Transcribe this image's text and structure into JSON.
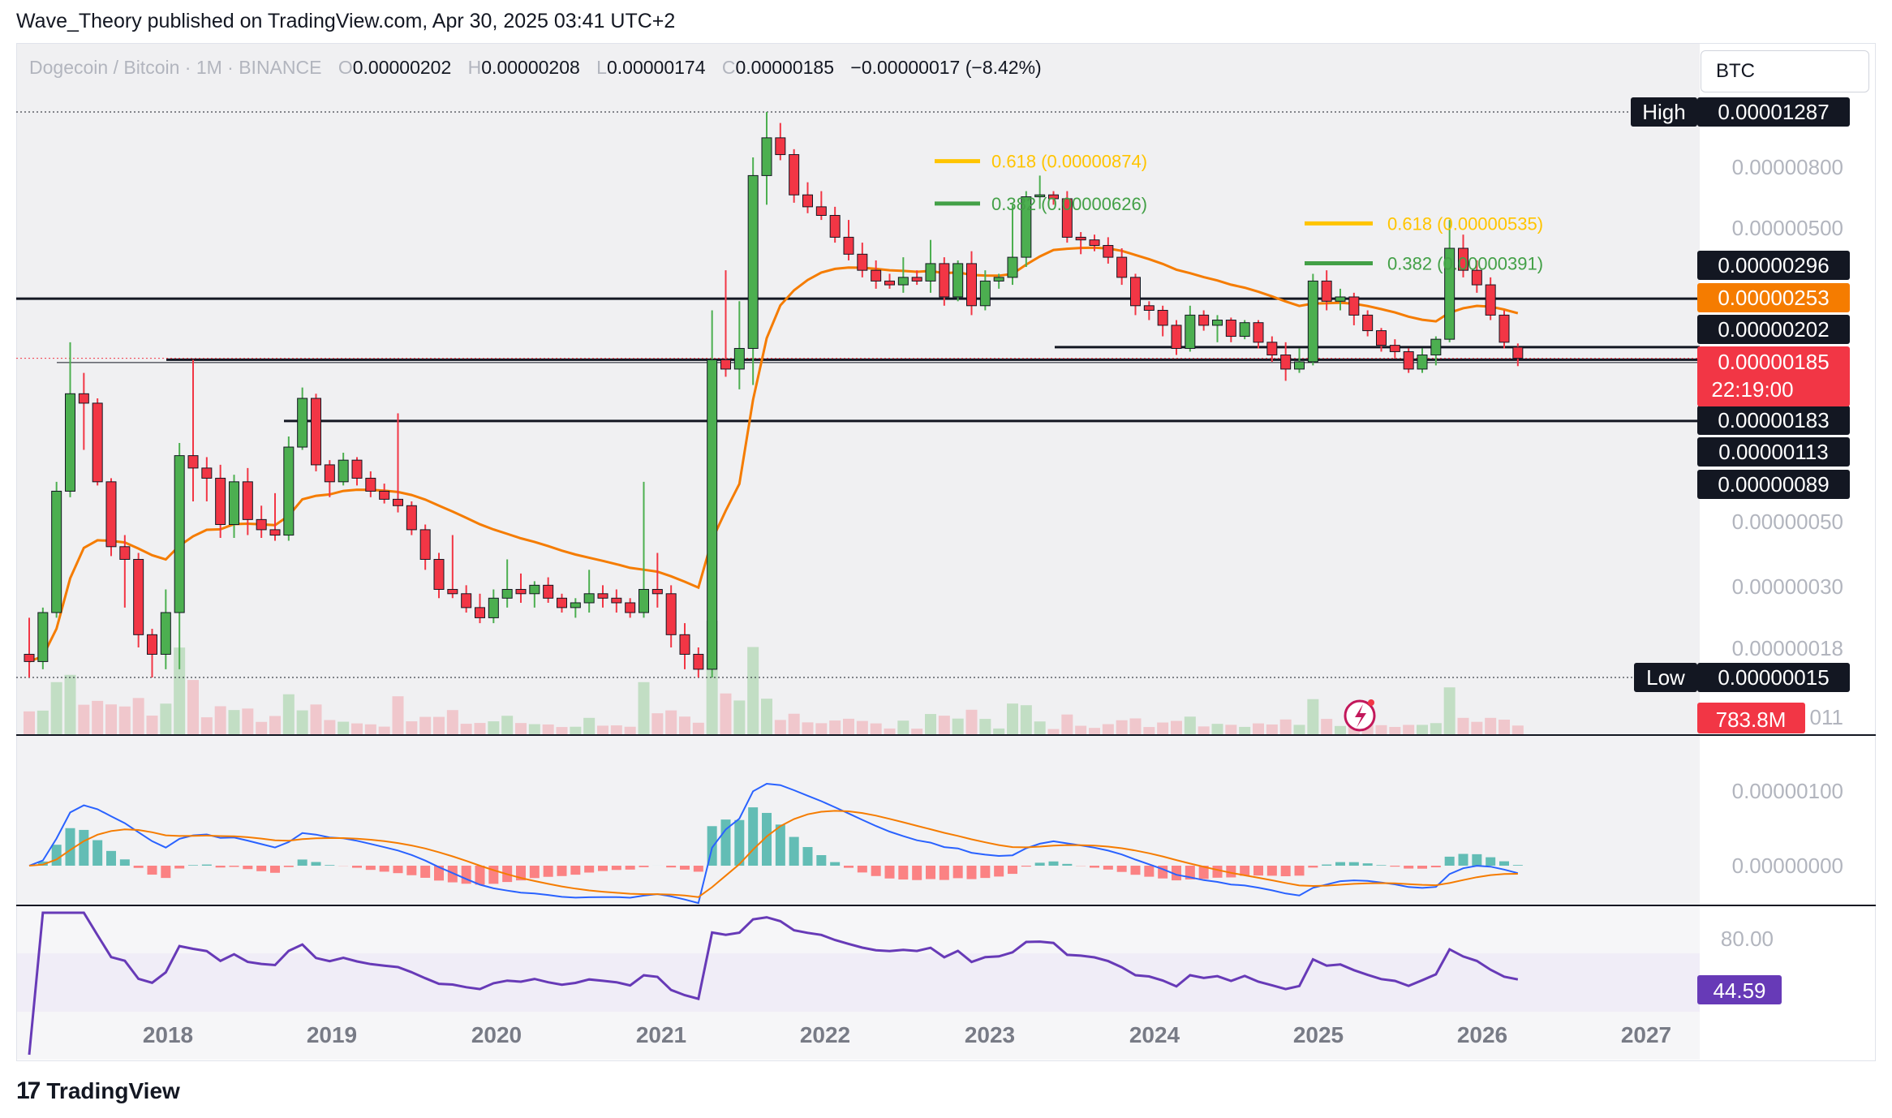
{
  "header": {
    "text": "Wave_Theory published on TradingView.com, Apr 30, 2025 03:41 UTC+2"
  },
  "legend": {
    "symbol": "Dogecoin / Bitcoin · 1M · BINANCE",
    "o_label": "O",
    "o": "0.00000202",
    "h_label": "H",
    "h": "0.00000208",
    "l_label": "L",
    "l": "0.00000174",
    "c_label": "C",
    "c": "0.00000185",
    "change": "−0.00000017 (−8.42%)"
  },
  "currency": "BTC",
  "footer": {
    "brand": "TradingView"
  },
  "colors": {
    "up": "#4caf50",
    "down": "#f23645",
    "ema": "#f57c00",
    "macd": "#2962ff",
    "signal": "#f57c00",
    "rsi": "#673ab7",
    "fib_618": "#ffc400",
    "fib_382": "#43a047"
  },
  "chart_data": {
    "type": "candlestick",
    "price_scale": "log",
    "x_axis_labels": [
      "2018",
      "2019",
      "2020",
      "2021",
      "2022",
      "2023",
      "2024",
      "2025",
      "2026",
      "2027"
    ],
    "y_axis_labels": [
      "0.00000800",
      "0.00000500",
      "0.00000050",
      "0.00000030",
      "0.00000018"
    ],
    "high_marker": {
      "label": "High",
      "value": "0.00001287"
    },
    "low_marker": {
      "label": "Low",
      "value": "0.00000015"
    },
    "horizontal_levels": [
      "0.00000296",
      "0.00000202",
      "0.00000183",
      "0.00000113",
      "0.00000089"
    ],
    "ema_value": "0.00000253",
    "last_price": "0.00000185",
    "countdown": "22:19:00",
    "volume": {
      "last": "783.8M",
      "axis_partial": "011"
    },
    "fib_levels": [
      {
        "label": "0.618 (0.00000874)",
        "value": 8.74e-06,
        "color": "#ffc400"
      },
      {
        "label": "0.382 (0.00000626)",
        "value": 6.26e-06,
        "color": "#43a047"
      },
      {
        "label": "0.618 (0.00000535)",
        "value": 5.35e-06,
        "color": "#ffc400"
      },
      {
        "label": "0.382 (0.00000391)",
        "value": 3.91e-06,
        "color": "#43a047"
      }
    ],
    "macd": {
      "axis_labels": [
        "0.00000100",
        "0.00000000"
      ]
    },
    "rsi": {
      "axis_label": "80.00",
      "value": "44.59"
    },
    "candles": [
      {
        "t": "2017-02",
        "o": 1.8e-07,
        "h": 2.4e-07,
        "l": 1.5e-07,
        "c": 1.7e-07
      },
      {
        "t": "2017-03",
        "o": 1.7e-07,
        "h": 2.6e-07,
        "l": 1.6e-07,
        "c": 2.5e-07
      },
      {
        "t": "2017-04",
        "o": 2.5e-07,
        "h": 7e-07,
        "l": 2.4e-07,
        "c": 6.5e-07
      },
      {
        "t": "2017-05",
        "o": 6.5e-07,
        "h": 2.1e-06,
        "l": 6.2e-07,
        "c": 1.4e-06
      },
      {
        "t": "2017-06",
        "o": 1.4e-06,
        "h": 1.65e-06,
        "l": 9e-07,
        "c": 1.3e-06
      },
      {
        "t": "2017-07",
        "o": 1.3e-06,
        "h": 1.35e-06,
        "l": 6.8e-07,
        "c": 7e-07
      },
      {
        "t": "2017-08",
        "o": 7e-07,
        "h": 7.2e-07,
        "l": 3.9e-07,
        "c": 4.2e-07
      },
      {
        "t": "2017-09",
        "o": 4.2e-07,
        "h": 4.6e-07,
        "l": 2.6e-07,
        "c": 3.8e-07
      },
      {
        "t": "2017-10",
        "o": 3.8e-07,
        "h": 4e-07,
        "l": 1.9e-07,
        "c": 2.1e-07
      },
      {
        "t": "2017-11",
        "o": 2.1e-07,
        "h": 2.2e-07,
        "l": 1.5e-07,
        "c": 1.8e-07
      },
      {
        "t": "2017-12",
        "o": 1.8e-07,
        "h": 3e-07,
        "l": 1.6e-07,
        "c": 2.5e-07
      },
      {
        "t": "2018-01",
        "o": 2.5e-07,
        "h": 9.5e-07,
        "l": 1.6e-07,
        "c": 8.6e-07
      },
      {
        "t": "2018-02",
        "o": 8.6e-07,
        "h": 1.83e-06,
        "l": 6e-07,
        "c": 7.8e-07
      },
      {
        "t": "2018-03",
        "o": 7.8e-07,
        "h": 8.5e-07,
        "l": 6e-07,
        "c": 7.2e-07
      },
      {
        "t": "2018-04",
        "o": 7.2e-07,
        "h": 8e-07,
        "l": 4.5e-07,
        "c": 5e-07
      },
      {
        "t": "2018-05",
        "o": 5e-07,
        "h": 7.4e-07,
        "l": 4.5e-07,
        "c": 7e-07
      },
      {
        "t": "2018-06",
        "o": 7e-07,
        "h": 7.8e-07,
        "l": 4.6e-07,
        "c": 5.2e-07
      },
      {
        "t": "2018-07",
        "o": 5.2e-07,
        "h": 5.8e-07,
        "l": 4.5e-07,
        "c": 4.8e-07
      },
      {
        "t": "2018-08",
        "o": 4.8e-07,
        "h": 6.4e-07,
        "l": 4.4e-07,
        "c": 4.6e-07
      },
      {
        "t": "2018-09",
        "o": 4.6e-07,
        "h": 1e-06,
        "l": 4.4e-07,
        "c": 9.2e-07
      },
      {
        "t": "2018-10",
        "o": 9.2e-07,
        "h": 1.47e-06,
        "l": 9e-07,
        "c": 1.35e-06
      },
      {
        "t": "2018-11",
        "o": 1.35e-06,
        "h": 1.4e-06,
        "l": 7.6e-07,
        "c": 8e-07
      },
      {
        "t": "2018-12",
        "o": 8e-07,
        "h": 8.3e-07,
        "l": 6.2e-07,
        "c": 7e-07
      },
      {
        "t": "2019-01",
        "o": 7e-07,
        "h": 8.8e-07,
        "l": 6.8e-07,
        "c": 8.3e-07
      },
      {
        "t": "2019-02",
        "o": 8.3e-07,
        "h": 8.5e-07,
        "l": 6.8e-07,
        "c": 7.2e-07
      },
      {
        "t": "2019-03",
        "o": 7.2e-07,
        "h": 7.6e-07,
        "l": 6.2e-07,
        "c": 6.5e-07
      },
      {
        "t": "2019-04",
        "o": 6.5e-07,
        "h": 6.9e-07,
        "l": 5.9e-07,
        "c": 6.1e-07
      },
      {
        "t": "2019-05",
        "o": 6.1e-07,
        "h": 1.2e-06,
        "l": 5.5e-07,
        "c": 5.8e-07
      },
      {
        "t": "2019-06",
        "o": 5.8e-07,
        "h": 6e-07,
        "l": 4.6e-07,
        "c": 4.8e-07
      },
      {
        "t": "2019-07",
        "o": 4.8e-07,
        "h": 5e-07,
        "l": 3.5e-07,
        "c": 3.8e-07
      },
      {
        "t": "2019-08",
        "o": 3.8e-07,
        "h": 4e-07,
        "l": 2.8e-07,
        "c": 3e-07
      },
      {
        "t": "2019-09",
        "o": 3e-07,
        "h": 4.6e-07,
        "l": 2.8e-07,
        "c": 2.9e-07
      },
      {
        "t": "2019-10",
        "o": 2.9e-07,
        "h": 3.1e-07,
        "l": 2.5e-07,
        "c": 2.6e-07
      },
      {
        "t": "2019-11",
        "o": 2.6e-07,
        "h": 2.9e-07,
        "l": 2.3e-07,
        "c": 2.4e-07
      },
      {
        "t": "2019-12",
        "o": 2.4e-07,
        "h": 3e-07,
        "l": 2.3e-07,
        "c": 2.8e-07
      },
      {
        "t": "2020-01",
        "o": 2.8e-07,
        "h": 3.8e-07,
        "l": 2.6e-07,
        "c": 3e-07
      },
      {
        "t": "2020-02",
        "o": 3e-07,
        "h": 3.4e-07,
        "l": 2.7e-07,
        "c": 2.9e-07
      },
      {
        "t": "2020-03",
        "o": 2.9e-07,
        "h": 3.2e-07,
        "l": 2.6e-07,
        "c": 3.1e-07
      },
      {
        "t": "2020-04",
        "o": 3.1e-07,
        "h": 3.3e-07,
        "l": 2.7e-07,
        "c": 2.8e-07
      },
      {
        "t": "2020-05",
        "o": 2.8e-07,
        "h": 2.9e-07,
        "l": 2.5e-07,
        "c": 2.6e-07
      },
      {
        "t": "2020-06",
        "o": 2.6e-07,
        "h": 2.8e-07,
        "l": 2.4e-07,
        "c": 2.7e-07
      },
      {
        "t": "2020-07",
        "o": 2.7e-07,
        "h": 3.5e-07,
        "l": 2.5e-07,
        "c": 2.9e-07
      },
      {
        "t": "2020-08",
        "o": 2.9e-07,
        "h": 3.1e-07,
        "l": 2.6e-07,
        "c": 2.8e-07
      },
      {
        "t": "2020-09",
        "o": 2.8e-07,
        "h": 3e-07,
        "l": 2.5e-07,
        "c": 2.7e-07
      },
      {
        "t": "2020-10",
        "o": 2.7e-07,
        "h": 2.8e-07,
        "l": 2.4e-07,
        "c": 2.5e-07
      },
      {
        "t": "2020-11",
        "o": 2.5e-07,
        "h": 7e-07,
        "l": 2.4e-07,
        "c": 3e-07
      },
      {
        "t": "2020-12",
        "o": 3e-07,
        "h": 4e-07,
        "l": 2.6e-07,
        "c": 2.9e-07
      },
      {
        "t": "2021-01",
        "o": 2.9e-07,
        "h": 3.1e-07,
        "l": 1.9e-07,
        "c": 2.1e-07
      },
      {
        "t": "2021-02",
        "o": 2.1e-07,
        "h": 2.3e-07,
        "l": 1.6e-07,
        "c": 1.8e-07
      },
      {
        "t": "2021-03",
        "o": 1.8e-07,
        "h": 1.9e-07,
        "l": 1.5e-07,
        "c": 1.6e-07
      },
      {
        "t": "2021-04",
        "o": 1.6e-07,
        "h": 2.7e-06,
        "l": 1.5e-07,
        "c": 1.83e-06
      },
      {
        "t": "2021-05",
        "o": 1.83e-06,
        "h": 3.7e-06,
        "l": 1.6e-06,
        "c": 1.7e-06
      },
      {
        "t": "2021-06",
        "o": 1.7e-06,
        "h": 2.9e-06,
        "l": 1.45e-06,
        "c": 2e-06
      },
      {
        "t": "2021-07",
        "o": 2e-06,
        "h": 9e-06,
        "l": 1.5e-06,
        "c": 7.8e-06
      },
      {
        "t": "2021-08",
        "o": 7.8e-06,
        "h": 1.287e-05,
        "l": 6.2e-06,
        "c": 1.05e-05
      },
      {
        "t": "2021-09",
        "o": 1.05e-05,
        "h": 1.18e-05,
        "l": 8.8e-06,
        "c": 9.2e-06
      },
      {
        "t": "2021-10",
        "o": 9.2e-06,
        "h": 9.6e-06,
        "l": 6.3e-06,
        "c": 6.7e-06
      },
      {
        "t": "2021-11",
        "o": 6.7e-06,
        "h": 7.4e-06,
        "l": 5.8e-06,
        "c": 6.1e-06
      },
      {
        "t": "2021-12",
        "o": 6.1e-06,
        "h": 6.9e-06,
        "l": 5.5e-06,
        "c": 5.7e-06
      },
      {
        "t": "2022-01",
        "o": 5.7e-06,
        "h": 6.1e-06,
        "l": 4.6e-06,
        "c": 4.8e-06
      },
      {
        "t": "2022-02",
        "o": 4.8e-06,
        "h": 5.5e-06,
        "l": 4e-06,
        "c": 4.2e-06
      },
      {
        "t": "2022-03",
        "o": 4.2e-06,
        "h": 4.6e-06,
        "l": 3.5e-06,
        "c": 3.7e-06
      },
      {
        "t": "2022-04",
        "o": 3.7e-06,
        "h": 4e-06,
        "l": 3.2e-06,
        "c": 3.4e-06
      },
      {
        "t": "2022-05",
        "o": 3.4e-06,
        "h": 3.6e-06,
        "l": 3.2e-06,
        "c": 3.3e-06
      },
      {
        "t": "2022-06",
        "o": 3.3e-06,
        "h": 4.1e-06,
        "l": 3.1e-06,
        "c": 3.5e-06
      },
      {
        "t": "2022-07",
        "o": 3.5e-06,
        "h": 3.7e-06,
        "l": 3.3e-06,
        "c": 3.4e-06
      },
      {
        "t": "2022-08",
        "o": 3.4e-06,
        "h": 4.7e-06,
        "l": 3.1e-06,
        "c": 3.9e-06
      },
      {
        "t": "2022-09",
        "o": 3.9e-06,
        "h": 4.1e-06,
        "l": 2.8e-06,
        "c": 3e-06
      },
      {
        "t": "2022-10",
        "o": 3e-06,
        "h": 4e-06,
        "l": 2.9e-06,
        "c": 3.9e-06
      },
      {
        "t": "2022-11",
        "o": 3.9e-06,
        "h": 4.3e-06,
        "l": 2.6e-06,
        "c": 2.8e-06
      },
      {
        "t": "2022-12",
        "o": 2.8e-06,
        "h": 3.7e-06,
        "l": 2.7e-06,
        "c": 3.4e-06
      },
      {
        "t": "2023-01",
        "o": 3.4e-06,
        "h": 3.6e-06,
        "l": 3.2e-06,
        "c": 3.5e-06
      },
      {
        "t": "2023-02",
        "o": 3.5e-06,
        "h": 6.2e-06,
        "l": 3.3e-06,
        "c": 4.1e-06
      },
      {
        "t": "2023-03",
        "o": 4.1e-06,
        "h": 6.9e-06,
        "l": 3.8e-06,
        "c": 6.6e-06
      },
      {
        "t": "2023-04",
        "o": 6.6e-06,
        "h": 7.8e-06,
        "l": 6e-06,
        "c": 6.7e-06
      },
      {
        "t": "2023-05",
        "o": 6.7e-06,
        "h": 6.9e-06,
        "l": 6.2e-06,
        "c": 6.5e-06
      },
      {
        "t": "2023-06",
        "o": 6.5e-06,
        "h": 6.9e-06,
        "l": 4.6e-06,
        "c": 4.8e-06
      },
      {
        "t": "2023-07",
        "o": 4.8e-06,
        "h": 5e-06,
        "l": 4.2e-06,
        "c": 4.7e-06
      },
      {
        "t": "2023-08",
        "o": 4.7e-06,
        "h": 4.9e-06,
        "l": 4.3e-06,
        "c": 4.5e-06
      },
      {
        "t": "2023-09",
        "o": 4.5e-06,
        "h": 4.8e-06,
        "l": 3.9e-06,
        "c": 4.1e-06
      },
      {
        "t": "2023-10",
        "o": 4.1e-06,
        "h": 4.4e-06,
        "l": 3.3e-06,
        "c": 3.5e-06
      },
      {
        "t": "2023-11",
        "o": 3.5e-06,
        "h": 3.6e-06,
        "l": 2.6e-06,
        "c": 2.8e-06
      },
      {
        "t": "2023-12",
        "o": 2.8e-06,
        "h": 2.9e-06,
        "l": 2.5e-06,
        "c": 2.7e-06
      },
      {
        "t": "2024-01",
        "o": 2.7e-06,
        "h": 2.8e-06,
        "l": 2.2e-06,
        "c": 2.4e-06
      },
      {
        "t": "2024-02",
        "o": 2.4e-06,
        "h": 2.5e-06,
        "l": 1.9e-06,
        "c": 2e-06
      },
      {
        "t": "2024-03",
        "o": 2e-06,
        "h": 2.8e-06,
        "l": 1.95e-06,
        "c": 2.6e-06
      },
      {
        "t": "2024-04",
        "o": 2.6e-06,
        "h": 2.7e-06,
        "l": 2.3e-06,
        "c": 2.4e-06
      },
      {
        "t": "2024-05",
        "o": 2.4e-06,
        "h": 2.6e-06,
        "l": 2.1e-06,
        "c": 2.5e-06
      },
      {
        "t": "2024-06",
        "o": 2.5e-06,
        "h": 2.55e-06,
        "l": 2.1e-06,
        "c": 2.2e-06
      },
      {
        "t": "2024-07",
        "o": 2.2e-06,
        "h": 2.5e-06,
        "l": 2.15e-06,
        "c": 2.45e-06
      },
      {
        "t": "2024-08",
        "o": 2.45e-06,
        "h": 2.5e-06,
        "l": 2e-06,
        "c": 2.1e-06
      },
      {
        "t": "2024-09",
        "o": 2.1e-06,
        "h": 2.2e-06,
        "l": 1.8e-06,
        "c": 1.9e-06
      },
      {
        "t": "2024-10",
        "o": 1.9e-06,
        "h": 2.1e-06,
        "l": 1.55e-06,
        "c": 1.7e-06
      },
      {
        "t": "2024-11",
        "o": 1.7e-06,
        "h": 2e-06,
        "l": 1.65e-06,
        "c": 1.8e-06
      },
      {
        "t": "2024-12",
        "o": 1.8e-06,
        "h": 3.6e-06,
        "l": 1.75e-06,
        "c": 3.4e-06
      },
      {
        "t": "2025-01",
        "o": 3.4e-06,
        "h": 3.7e-06,
        "l": 2.7e-06,
        "c": 2.9e-06
      },
      {
        "t": "2025-02",
        "o": 2.9e-06,
        "h": 3.2e-06,
        "l": 2.7e-06,
        "c": 3e-06
      },
      {
        "t": "2025-03",
        "o": 3e-06,
        "h": 3.1e-06,
        "l": 2.4e-06,
        "c": 2.6e-06
      },
      {
        "t": "2025-04",
        "o": 2.6e-06,
        "h": 2.7e-06,
        "l": 2.2e-06,
        "c": 2.3e-06
      },
      {
        "t": "2025-05",
        "o": 2.3e-06,
        "h": 2.35e-06,
        "l": 1.95e-06,
        "c": 2.05e-06
      },
      {
        "t": "2025-06",
        "o": 2.05e-06,
        "h": 2.15e-06,
        "l": 1.85e-06,
        "c": 1.95e-06
      },
      {
        "t": "2025-07",
        "o": 1.95e-06,
        "h": 2e-06,
        "l": 1.65e-06,
        "c": 1.7e-06
      },
      {
        "t": "2025-08",
        "o": 1.7e-06,
        "h": 2e-06,
        "l": 1.65e-06,
        "c": 1.9e-06
      },
      {
        "t": "2025-09",
        "o": 1.9e-06,
        "h": 2.2e-06,
        "l": 1.75e-06,
        "c": 2.15e-06
      },
      {
        "t": "2025-10",
        "o": 2.15e-06,
        "h": 5.5e-06,
        "l": 2.1e-06,
        "c": 4.4e-06
      },
      {
        "t": "2025-11",
        "o": 4.4e-06,
        "h": 4.9e-06,
        "l": 3.5e-06,
        "c": 3.7e-06
      },
      {
        "t": "2025-12",
        "o": 3.7e-06,
        "h": 4e-06,
        "l": 3.1e-06,
        "c": 3.3e-06
      },
      {
        "t": "2026-01",
        "o": 3.3e-06,
        "h": 3.5e-06,
        "l": 2.5e-06,
        "c": 2.6e-06
      },
      {
        "t": "2026-02",
        "o": 2.6e-06,
        "h": 2.7e-06,
        "l": 2e-06,
        "c": 2.1e-06
      },
      {
        "t": "2026-03",
        "o": 2.02e-06,
        "h": 2.08e-06,
        "l": 1.74e-06,
        "c": 1.85e-06
      }
    ]
  }
}
